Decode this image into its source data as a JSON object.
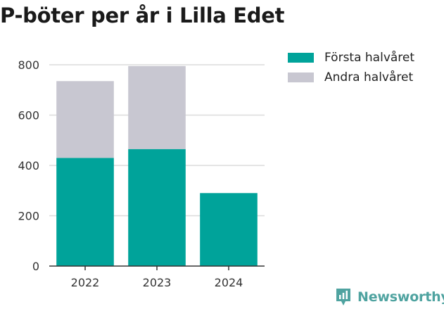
{
  "title": "P-böter per år i Lilla Edet",
  "brand": {
    "name": "Newsworthy",
    "icon": "newsworthy-logo-icon",
    "color": "#4fa3a0"
  },
  "chart_data": {
    "type": "bar",
    "stacked": true,
    "title": "P-böter per år i Lilla Edet",
    "xlabel": "",
    "ylabel": "",
    "categories": [
      "2022",
      "2023",
      "2024"
    ],
    "series": [
      {
        "name": "Första halvåret",
        "color": "#00a39a",
        "values": [
          430,
          465,
          290
        ]
      },
      {
        "name": "Andra halvåret",
        "color": "#c8c7d1",
        "values": [
          305,
          330,
          0
        ]
      }
    ],
    "ylim": [
      0,
      800
    ],
    "yticks": [
      0,
      200,
      400,
      600,
      800
    ],
    "grid": true,
    "legend": "top-right"
  }
}
